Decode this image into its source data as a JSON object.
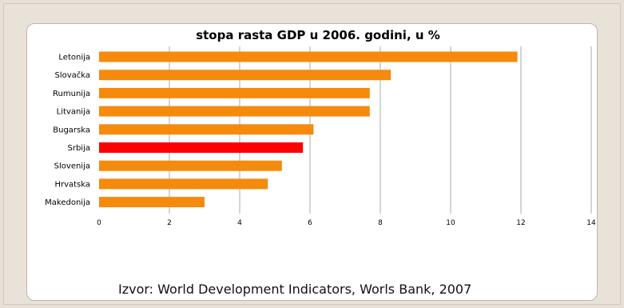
{
  "chart_data": {
    "type": "bar",
    "orientation": "horizontal",
    "title": "stopa rasta GDP u 2006. godini, u %",
    "categories": [
      "Letonija",
      "Slovačka",
      "Rumunija",
      "Litvanija",
      "Bugarska",
      "Srbija",
      "Slovenija",
      "Hrvatska",
      "Makedonija"
    ],
    "values": [
      11.9,
      8.3,
      7.7,
      7.7,
      6.1,
      5.8,
      5.2,
      4.8,
      3.0
    ],
    "xlim": [
      0,
      14
    ],
    "xticks": [
      0,
      2,
      4,
      6,
      8,
      10,
      12,
      14
    ],
    "grid": "vertical",
    "legend": "none",
    "bar_color": "#f58a0c",
    "highlight_color": "#ff0000",
    "highlight_category": "Srbija"
  },
  "source_text": "Izvor: World Development Indicators, Worls Bank, 2007"
}
